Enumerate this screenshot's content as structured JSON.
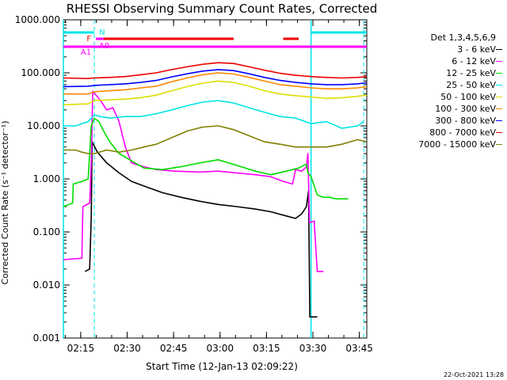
{
  "chart_data": {
    "type": "line",
    "title": "RHESSI Observing Summary Count Rates, Corrected",
    "xlabel": "Start Time (12-Jan-13 02:09:22)",
    "ylabel": "Corrected Count Rate (s⁻¹ detector⁻¹)",
    "y_scale": "log",
    "ylim": [
      0.001,
      1000
    ],
    "xlim_minutes": [
      0,
      98
    ],
    "x_ticks": [
      {
        "label": "02:15",
        "minute": 5.6
      },
      {
        "label": "02:30",
        "minute": 20.6
      },
      {
        "label": "02:45",
        "minute": 35.6
      },
      {
        "label": "03:00",
        "minute": 50.6
      },
      {
        "label": "03:15",
        "minute": 65.6
      },
      {
        "label": "03:30",
        "minute": 80.6
      },
      {
        "label": "03:45",
        "minute": 95.6
      }
    ],
    "y_ticks": [
      {
        "label": "1000.000",
        "value": 1000
      },
      {
        "label": "100.000",
        "value": 100
      },
      {
        "label": "10.000",
        "value": 10
      },
      {
        "label": "1.000",
        "value": 1
      },
      {
        "label": "0.100",
        "value": 0.1
      },
      {
        "label": "0.010",
        "value": 0.01
      },
      {
        "label": "0.001",
        "value": 0.001
      }
    ],
    "legend_title": "Det 1,3,4,5,6,9",
    "legend_position": "right",
    "series": [
      {
        "name": "3 - 6 keV",
        "color": "#000000",
        "points": [
          [
            7,
            0.018
          ],
          [
            8.5,
            0.02
          ],
          [
            9,
            0.2
          ],
          [
            9.3,
            5
          ],
          [
            11,
            3.2
          ],
          [
            14,
            2
          ],
          [
            18,
            1.3
          ],
          [
            22,
            0.9
          ],
          [
            27,
            0.7
          ],
          [
            32,
            0.55
          ],
          [
            38,
            0.45
          ],
          [
            44,
            0.38
          ],
          [
            50,
            0.33
          ],
          [
            56,
            0.3
          ],
          [
            62,
            0.27
          ],
          [
            67,
            0.24
          ],
          [
            72,
            0.2
          ],
          [
            75,
            0.18
          ],
          [
            77,
            0.22
          ],
          [
            78.5,
            0.3
          ],
          [
            79.2,
            0.6
          ],
          [
            79.6,
            0.0025
          ],
          [
            82,
            0.0025
          ]
        ]
      },
      {
        "name": "6 - 12 keV",
        "color": "#ff00ff",
        "points": [
          [
            0,
            0.03
          ],
          [
            6,
            0.032
          ],
          [
            6.3,
            0.3
          ],
          [
            8.5,
            0.35
          ],
          [
            9,
            2
          ],
          [
            9.5,
            45
          ],
          [
            12,
            30
          ],
          [
            14,
            20
          ],
          [
            16,
            22
          ],
          [
            18,
            12
          ],
          [
            20,
            4
          ],
          [
            22,
            2
          ],
          [
            26,
            1.7
          ],
          [
            30,
            1.5
          ],
          [
            36,
            1.4
          ],
          [
            44,
            1.35
          ],
          [
            50,
            1.4
          ],
          [
            56,
            1.3
          ],
          [
            62,
            1.2
          ],
          [
            67,
            1.1
          ],
          [
            71,
            0.9
          ],
          [
            74,
            0.8
          ],
          [
            75,
            1.5
          ],
          [
            77,
            1.4
          ],
          [
            78.5,
            1.7
          ],
          [
            79,
            3
          ],
          [
            79.5,
            0.15
          ],
          [
            81,
            0.16
          ],
          [
            82,
            0.018
          ],
          [
            84,
            0.018
          ]
        ]
      },
      {
        "name": "12 - 25 keV",
        "color": "#00dd00",
        "points": [
          [
            0,
            0.3
          ],
          [
            3,
            0.35
          ],
          [
            3.2,
            0.8
          ],
          [
            6,
            0.9
          ],
          [
            8,
            1
          ],
          [
            9,
            10
          ],
          [
            10,
            14
          ],
          [
            11.5,
            12
          ],
          [
            13,
            8
          ],
          [
            15,
            5
          ],
          [
            18,
            3
          ],
          [
            22,
            2.2
          ],
          [
            26,
            1.6
          ],
          [
            32,
            1.5
          ],
          [
            38,
            1.7
          ],
          [
            44,
            2
          ],
          [
            50,
            2.3
          ],
          [
            56,
            1.8
          ],
          [
            62,
            1.4
          ],
          [
            67,
            1.2
          ],
          [
            72,
            1.4
          ],
          [
            76,
            1.6
          ],
          [
            78.5,
            1.9
          ],
          [
            79,
            1.3
          ],
          [
            80,
            1.1
          ],
          [
            82,
            0.5
          ],
          [
            84,
            0.45
          ],
          [
            86,
            0.45
          ],
          [
            88,
            0.42
          ],
          [
            90,
            0.42
          ],
          [
            92,
            0.42
          ]
        ]
      },
      {
        "name": "25 - 50 keV",
        "color": "#00e5e5",
        "points": [
          [
            0,
            10
          ],
          [
            4,
            10
          ],
          [
            6,
            11
          ],
          [
            8,
            12
          ],
          [
            10,
            16
          ],
          [
            12,
            15
          ],
          [
            15,
            14
          ],
          [
            20,
            15
          ],
          [
            25,
            15
          ],
          [
            30,
            17
          ],
          [
            35,
            20
          ],
          [
            40,
            24
          ],
          [
            45,
            28
          ],
          [
            50,
            30
          ],
          [
            55,
            27
          ],
          [
            60,
            22
          ],
          [
            65,
            18
          ],
          [
            70,
            15
          ],
          [
            75,
            14
          ],
          [
            80,
            11
          ],
          [
            85,
            12
          ],
          [
            90,
            9
          ],
          [
            95,
            10
          ],
          [
            97,
            12
          ]
        ]
      },
      {
        "name": "50 - 100 keV",
        "color": "#dddd00",
        "points": [
          [
            0,
            25
          ],
          [
            8,
            26
          ],
          [
            10,
            30
          ],
          [
            15,
            31
          ],
          [
            20,
            32
          ],
          [
            25,
            34
          ],
          [
            30,
            38
          ],
          [
            35,
            46
          ],
          [
            40,
            55
          ],
          [
            45,
            64
          ],
          [
            50,
            70
          ],
          [
            55,
            66
          ],
          [
            60,
            56
          ],
          [
            65,
            46
          ],
          [
            70,
            40
          ],
          [
            75,
            37
          ],
          [
            80,
            35
          ],
          [
            85,
            33
          ],
          [
            90,
            34
          ],
          [
            95,
            36
          ],
          [
            98,
            38
          ]
        ]
      },
      {
        "name": "100 - 300 keV",
        "color": "#ff8800",
        "points": [
          [
            0,
            40
          ],
          [
            8,
            40
          ],
          [
            10,
            44
          ],
          [
            15,
            46
          ],
          [
            20,
            48
          ],
          [
            25,
            52
          ],
          [
            30,
            56
          ],
          [
            35,
            68
          ],
          [
            40,
            80
          ],
          [
            45,
            92
          ],
          [
            50,
            100
          ],
          [
            55,
            95
          ],
          [
            60,
            82
          ],
          [
            65,
            70
          ],
          [
            70,
            60
          ],
          [
            75,
            56
          ],
          [
            80,
            52
          ],
          [
            85,
            50
          ],
          [
            90,
            50
          ],
          [
            95,
            52
          ],
          [
            98,
            55
          ]
        ]
      },
      {
        "name": "300 - 800 keV",
        "color": "#0000ff",
        "points": [
          [
            0,
            55
          ],
          [
            8,
            56
          ],
          [
            10,
            58
          ],
          [
            15,
            60
          ],
          [
            20,
            62
          ],
          [
            25,
            66
          ],
          [
            30,
            72
          ],
          [
            35,
            84
          ],
          [
            40,
            96
          ],
          [
            45,
            108
          ],
          [
            50,
            115
          ],
          [
            55,
            110
          ],
          [
            60,
            96
          ],
          [
            65,
            82
          ],
          [
            70,
            72
          ],
          [
            75,
            66
          ],
          [
            80,
            62
          ],
          [
            85,
            60
          ],
          [
            90,
            60
          ],
          [
            95,
            62
          ],
          [
            98,
            65
          ]
        ]
      },
      {
        "name": "800 - 7000 keV",
        "color": "#ee0000",
        "points": [
          [
            0,
            80
          ],
          [
            8,
            78
          ],
          [
            10,
            80
          ],
          [
            15,
            82
          ],
          [
            20,
            85
          ],
          [
            25,
            92
          ],
          [
            30,
            100
          ],
          [
            35,
            115
          ],
          [
            40,
            130
          ],
          [
            45,
            145
          ],
          [
            50,
            155
          ],
          [
            55,
            150
          ],
          [
            60,
            130
          ],
          [
            65,
            112
          ],
          [
            70,
            98
          ],
          [
            75,
            90
          ],
          [
            80,
            85
          ],
          [
            85,
            82
          ],
          [
            90,
            80
          ],
          [
            95,
            82
          ],
          [
            98,
            85
          ]
        ]
      },
      {
        "name": "7000 - 15000 keV",
        "color": "#808000",
        "points": [
          [
            0,
            3.5
          ],
          [
            4,
            3.5
          ],
          [
            6,
            3.2
          ],
          [
            8,
            3
          ],
          [
            10,
            3
          ],
          [
            14,
            3.5
          ],
          [
            18,
            3.2
          ],
          [
            22,
            3.5
          ],
          [
            26,
            4
          ],
          [
            30,
            4.5
          ],
          [
            35,
            6
          ],
          [
            40,
            8
          ],
          [
            45,
            9.5
          ],
          [
            50,
            10
          ],
          [
            55,
            8.5
          ],
          [
            60,
            6.5
          ],
          [
            65,
            5
          ],
          [
            70,
            4.5
          ],
          [
            75,
            4
          ],
          [
            80,
            4
          ],
          [
            85,
            4
          ],
          [
            90,
            4.5
          ],
          [
            95,
            5.5
          ],
          [
            98,
            5
          ]
        ]
      }
    ],
    "flag_bars": [
      {
        "label": "N",
        "color": "#00e5e5",
        "level": "top",
        "segments": [
          [
            0,
            10
          ],
          [
            80,
            98
          ]
        ]
      },
      {
        "label": "F",
        "color": "#ee0000",
        "level": "second",
        "segments": [
          [
            10.5,
            55
          ],
          [
            71,
            76
          ]
        ]
      },
      {
        "label": "A0",
        "color": "#ff00ff",
        "level": "second",
        "segments": [
          [
            10.5,
            13
          ]
        ]
      },
      {
        "label": "A1",
        "color": "#ff00ff",
        "level": "third",
        "segments": [
          [
            0,
            98
          ],
          [
            10.5,
            13
          ]
        ]
      }
    ],
    "vertical_markers": {
      "dashed_minutes": [
        10,
        97
      ],
      "solid_minutes": [
        0,
        80
      ]
    }
  },
  "footer": {
    "timestamp": "22-Oct-2021 13:28"
  }
}
